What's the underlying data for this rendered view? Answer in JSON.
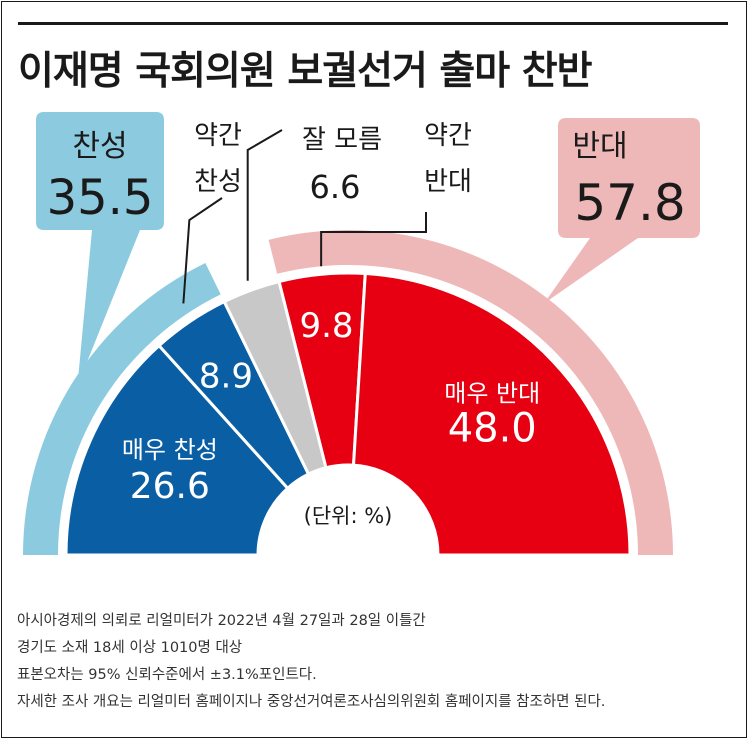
{
  "title": "이재명 국회의원 보궐선거 출마 찬반",
  "colors": {
    "strong_support": "#0a5ea4",
    "weak_support": "#0a5ea4",
    "dont_know": "#c8c8c8",
    "weak_oppose": "#e60012",
    "strong_oppose": "#e60012",
    "support_total": "#8ccbdf",
    "oppose_total": "#efb8b8",
    "divider": "#ffffff",
    "text_dark": "#1a1a1a"
  },
  "chart_data": {
    "type": "pie",
    "style": "semi-donut",
    "unit_label": "(단위: %)",
    "slices": [
      {
        "label": "매우 찬성",
        "value": 26.6
      },
      {
        "label": "약간 찬성",
        "value": 8.9
      },
      {
        "label": "잘 모름",
        "value": 6.6
      },
      {
        "label": "약간 반대",
        "value": 9.8
      },
      {
        "label": "매우 반대",
        "value": 48.0
      }
    ],
    "totals": [
      {
        "label": "찬성",
        "value": 35.5
      },
      {
        "label": "반대",
        "value": 57.8
      }
    ]
  },
  "notes": [
    "아시아경제의 의뢰로 리얼미터가 2022년 4월 27일과 28일 이틀간",
    "경기도 소재 18세 이상 1010명 대상",
    "표본오차는 95% 신뢰수준에서 ±3.1%포인트다.",
    "자세한 조사 개요는 리얼미터 홈페이지나 중앙선거여론조사심의위원회 홈페이지를 참조하면 된다."
  ]
}
